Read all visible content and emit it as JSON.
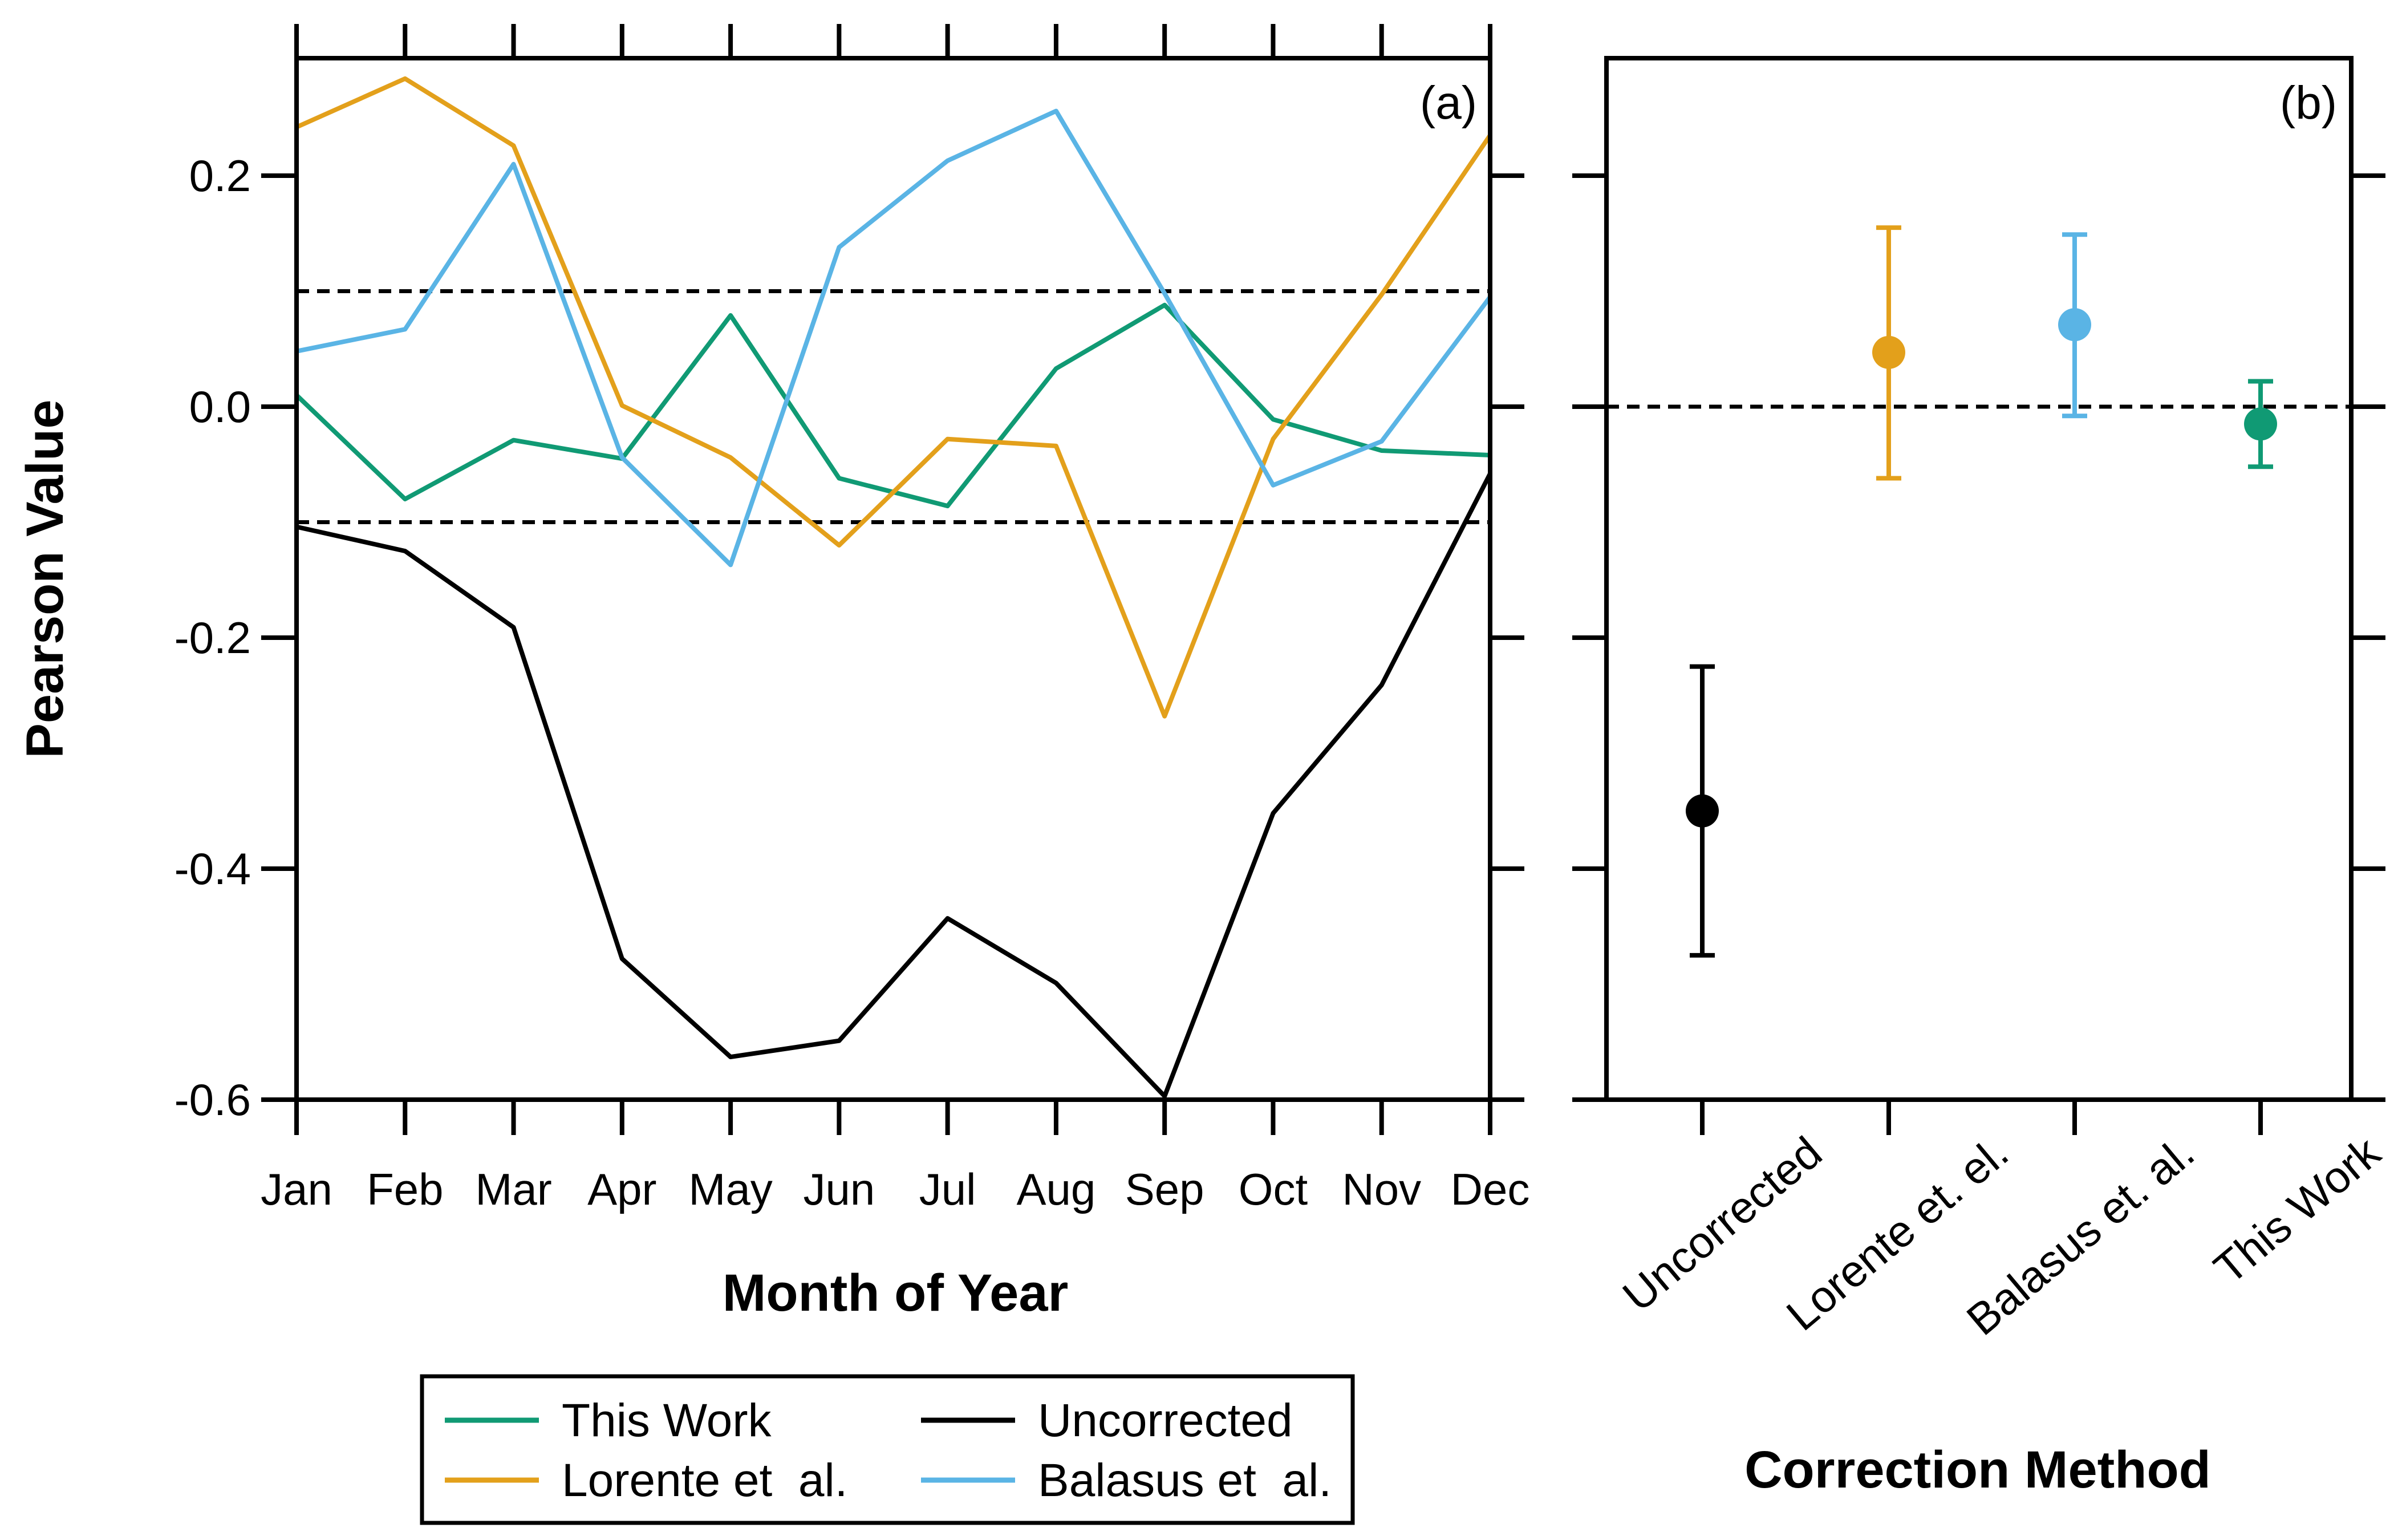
{
  "colors": {
    "this_work": "#109A74",
    "lorente": "#E3A01B",
    "balasus": "#5AB4E5",
    "uncorrected": "#000000"
  },
  "chart_data": [
    {
      "type": "line",
      "panel_label": "(a)",
      "xlabel": "Month of Year",
      "ylabel": "Pearson Value",
      "categories": [
        "Jan",
        "Feb",
        "Mar",
        "Apr",
        "May",
        "Jun",
        "Jul",
        "Aug",
        "Sep",
        "Oct",
        "Nov",
        "Dec"
      ],
      "ylim": [
        -0.6,
        0.3
      ],
      "yticks": [
        -0.6,
        -0.4,
        -0.2,
        0.0,
        0.2
      ],
      "ytick_labels": [
        "-0.6",
        "-0.4",
        "-0.2",
        "0.0",
        "0.2"
      ],
      "reference_lines": [
        0.1,
        -0.1
      ],
      "grid": false,
      "legend_position": "bottom",
      "series": [
        {
          "name": "This Work",
          "color_key": "this_work",
          "values": [
            0.01,
            -0.08,
            -0.029,
            -0.045,
            0.079,
            -0.062,
            -0.086,
            0.033,
            0.088,
            -0.011,
            -0.038,
            -0.042
          ]
        },
        {
          "name": "Lorente et al.",
          "color_key": "lorente",
          "values": [
            0.242,
            0.284,
            0.226,
            0.001,
            -0.044,
            -0.12,
            -0.028,
            -0.034,
            -0.268,
            -0.028,
            0.097,
            0.235
          ]
        },
        {
          "name": "Balasus et al.",
          "color_key": "balasus",
          "values": [
            0.048,
            0.067,
            0.21,
            -0.044,
            -0.137,
            0.138,
            0.213,
            0.256,
            0.098,
            -0.068,
            -0.03,
            0.095
          ]
        },
        {
          "name": "Uncorrected",
          "color_key": "uncorrected",
          "values": [
            -0.104,
            -0.125,
            -0.191,
            -0.478,
            -0.563,
            -0.549,
            -0.443,
            -0.499,
            -0.597,
            -0.352,
            -0.241,
            -0.058
          ]
        }
      ]
    },
    {
      "type": "scatter",
      "panel_label": "(b)",
      "xlabel": "Correction Method",
      "categories": [
        "Uncorrected",
        "Lorente et. el.",
        "Balasus et. al.",
        "This Work"
      ],
      "ylim": [
        -0.6,
        0.3
      ],
      "reference_lines": [
        0.0
      ],
      "points": [
        {
          "category": "Uncorrected",
          "color_key": "uncorrected",
          "value": -0.35,
          "err_low": -0.475,
          "err_high": -0.225
        },
        {
          "category": "Lorente et. el.",
          "color_key": "lorente",
          "value": 0.047,
          "err_low": -0.062,
          "err_high": 0.155
        },
        {
          "category": "Balasus et. al.",
          "color_key": "balasus",
          "value": 0.071,
          "err_low": -0.008,
          "err_high": 0.149
        },
        {
          "category": "This Work",
          "color_key": "this_work",
          "value": -0.015,
          "err_low": -0.052,
          "err_high": 0.022
        }
      ]
    }
  ],
  "legend": {
    "items": [
      {
        "label": "This Work",
        "color_key": "this_work"
      },
      {
        "label": "Uncorrected",
        "color_key": "uncorrected"
      },
      {
        "label": "Lorente et  al.",
        "color_key": "lorente"
      },
      {
        "label": "Balasus et  al.",
        "color_key": "balasus"
      }
    ]
  }
}
